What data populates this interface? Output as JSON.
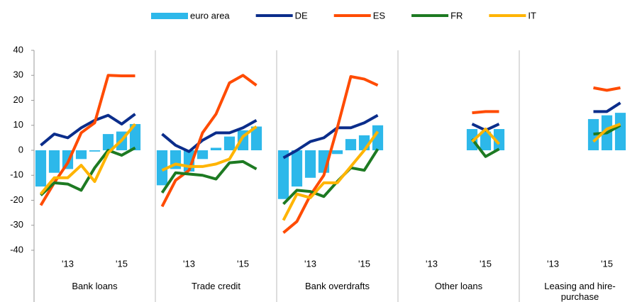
{
  "chart_data": {
    "type": "bar-line",
    "legend": "top",
    "ylim": [
      -40,
      40
    ],
    "yticks": [
      -40,
      -30,
      -20,
      -10,
      0,
      10,
      20,
      30,
      40
    ],
    "categories": [
      null,
      null,
      "'13",
      null,
      null,
      null,
      "'15",
      null
    ],
    "series": [
      {
        "name": "euro area",
        "color": "#2db8ea",
        "kind": "bar"
      },
      {
        "name": "DE",
        "color": "#0b2d8b",
        "kind": "line"
      },
      {
        "name": "ES",
        "color": "#ff4b00",
        "kind": "line"
      },
      {
        "name": "FR",
        "color": "#1d7a22",
        "kind": "line"
      },
      {
        "name": "IT",
        "color": "#ffb400",
        "kind": "line"
      }
    ],
    "panels": [
      {
        "label": "Bank loans",
        "values": [
          [
            -14.5,
            -9,
            -7.5,
            -3.5,
            -0.5,
            6.5,
            7.5,
            10.5
          ],
          [
            2,
            6.5,
            5,
            9,
            12,
            14,
            10.5,
            14.5
          ],
          [
            -22,
            -13,
            -5,
            7,
            11,
            30,
            29.8,
            29.8
          ],
          [
            -18,
            -13,
            -13.5,
            -16,
            -7,
            0,
            -2,
            1
          ],
          [
            -17.5,
            -11,
            -11,
            -6,
            -12.5,
            -1,
            4,
            10.5
          ]
        ]
      },
      {
        "label": "Trade credit",
        "values": [
          [
            -14,
            -7.5,
            -8.5,
            -3.5,
            1,
            5.5,
            8,
            9.5
          ],
          [
            6.5,
            2,
            -0.5,
            4,
            7,
            7,
            9,
            12
          ],
          [
            -22.5,
            -12,
            -8,
            7,
            14.5,
            27,
            30,
            26
          ],
          [
            -17,
            -9,
            -9.5,
            -10,
            -11.5,
            -5,
            -4.5,
            -7.5
          ],
          [
            -8,
            -5.5,
            -6.5,
            -6.5,
            -5.5,
            -3.5,
            5.5,
            9.5
          ]
        ]
      },
      {
        "label": "Bank overdrafts",
        "values": [
          [
            -19.5,
            -14.5,
            -11,
            -9,
            -1.5,
            4.5,
            6,
            10
          ],
          [
            -3,
            0,
            3.5,
            5,
            9,
            9,
            11,
            14
          ],
          [
            -33,
            -28.5,
            -18,
            -10,
            9,
            29.5,
            28.5,
            26
          ],
          [
            -21.5,
            -16,
            -16.5,
            -18.5,
            -12.5,
            -7,
            -8,
            0.5
          ],
          [
            -28,
            -17.5,
            -19,
            -13,
            -13,
            -6.5,
            0,
            7.5
          ]
        ]
      },
      {
        "label": "Other loans",
        "values": [
          [
            null,
            null,
            null,
            null,
            null,
            8.5,
            7.5,
            8.5
          ],
          [
            null,
            null,
            null,
            null,
            null,
            10.5,
            8,
            10.5
          ],
          [
            null,
            null,
            null,
            null,
            null,
            15,
            15.5,
            15.5
          ],
          [
            null,
            null,
            null,
            null,
            null,
            4.5,
            -2.5,
            0.5
          ],
          [
            null,
            null,
            null,
            null,
            null,
            3.5,
            8.5,
            2.5
          ]
        ]
      },
      {
        "label": "Leasing and hire-purchase",
        "values": [
          [
            null,
            null,
            null,
            null,
            null,
            12.5,
            14,
            15
          ],
          [
            null,
            null,
            null,
            null,
            null,
            15.5,
            15.5,
            19
          ],
          [
            null,
            null,
            null,
            null,
            null,
            25,
            24,
            25
          ],
          [
            null,
            null,
            null,
            null,
            null,
            6.5,
            7,
            10
          ],
          [
            null,
            null,
            null,
            null,
            null,
            3.5,
            8.5,
            10.5
          ]
        ]
      }
    ]
  }
}
